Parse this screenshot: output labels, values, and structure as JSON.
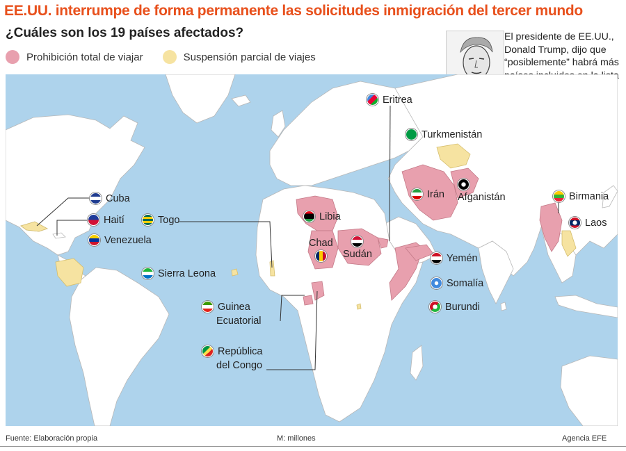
{
  "headline": "EE.UU. interrumpe de forma permanente las solicitudes inmigración del tercer mundo",
  "subtitle": "¿Cuáles son los 19 países afectados?",
  "legend": {
    "total": {
      "label": "Prohibición total de viajar",
      "color": "#e8a0ae"
    },
    "partial": {
      "label": "Suspensión parcial de viajes",
      "color": "#f6e3a1"
    }
  },
  "quote": "El presidente de EE.UU., Donald Trump, dijo que “posiblemente” habrá más países incluidos en la lista de países a los que suspendieron los procesos de inmigración",
  "colors": {
    "ocean": "#aed3ec",
    "land": "#ffffff",
    "border": "#b0b0b0"
  },
  "countries": {
    "cuba": "Cuba",
    "haiti": "Haití",
    "venezuela": "Venezuela",
    "togo": "Togo",
    "sierra_leona": "Sierra Leona",
    "guinea_ecuatorial_1": "Guinea",
    "guinea_ecuatorial_2": "Ecuatorial",
    "congo_1": "República",
    "congo_2": "del Congo",
    "libia": "Libia",
    "chad": "Chad",
    "sudan": "Sudán",
    "eritrea": "Eritrea",
    "turkmenistan": "Turkmenistán",
    "iran": "Irán",
    "afganistan": "Afganistán",
    "yemen": "Yemén",
    "somalia": "Somalía",
    "burundi": "Burundi",
    "birmania": "Birmania",
    "laos": "Laos"
  },
  "footer": {
    "source": "Fuente: Elaboración propia",
    "units": "M: millones",
    "agency": "Agencia EFE"
  }
}
